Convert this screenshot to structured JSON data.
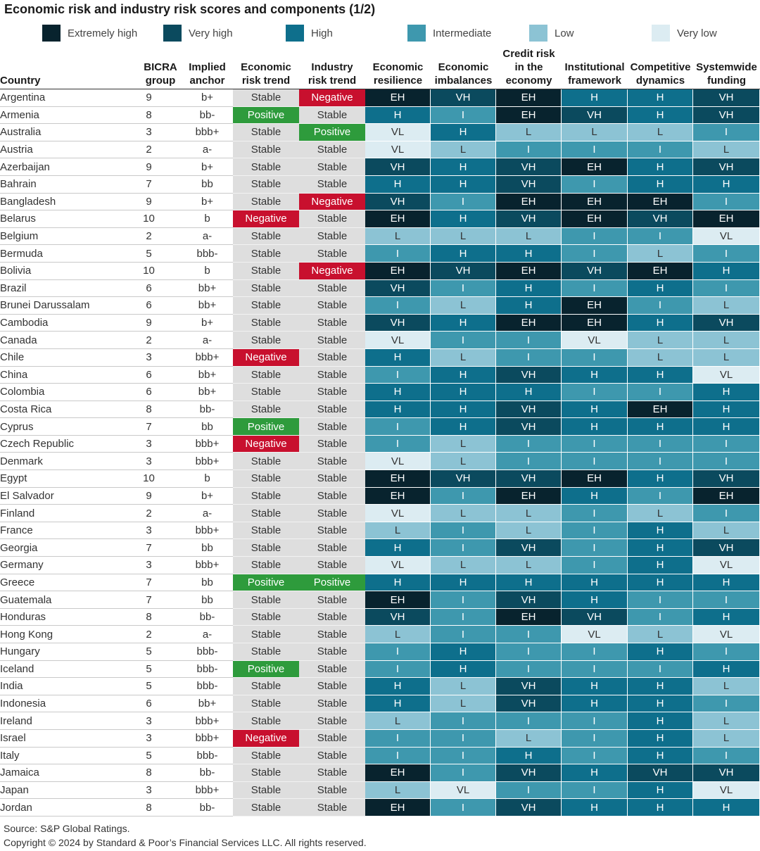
{
  "title": "Economic risk and industry risk scores and components (1/2)",
  "legend": [
    {
      "label": "Extremely high",
      "color": "#08232e"
    },
    {
      "label": "Very high",
      "color": "#0b4a5e"
    },
    {
      "label": "High",
      "color": "#0e6f8c"
    },
    {
      "label": "Intermediate",
      "color": "#3e98ae"
    },
    {
      "label": "Low",
      "color": "#8cc3d4"
    },
    {
      "label": "Very low",
      "color": "#dcecf2"
    }
  ],
  "score_colors": {
    "EH": "#08232e",
    "VH": "#0b4a5e",
    "H": "#0e6f8c",
    "I": "#3e98ae",
    "L": "#8cc3d4",
    "VL": "#dcecf2"
  },
  "trend_colors": {
    "Negative": "#c8102e",
    "Positive": "#2e9b3c",
    "Stable": "#dedede"
  },
  "headers": {
    "country": "Country",
    "bicra_group": "BICRA group",
    "implied_anchor": "Implied anchor",
    "economic_risk_trend": "Economic risk trend",
    "industry_risk_trend": "Industry risk trend",
    "economic_resilience": "Economic resilience",
    "economic_imbalances": "Economic imbalances",
    "credit_risk": "Credit risk in the economy",
    "institutional_framework": "Institutional framework",
    "competitive_dynamics": "Competitive dynamics",
    "systemwide_funding": "Systemwide funding"
  },
  "rows": [
    [
      "Argentina",
      "9",
      "b+",
      "Stable",
      "Negative",
      "EH",
      "VH",
      "EH",
      "H",
      "H",
      "VH"
    ],
    [
      "Armenia",
      "8",
      "bb-",
      "Positive",
      "Stable",
      "H",
      "I",
      "EH",
      "VH",
      "H",
      "VH"
    ],
    [
      "Australia",
      "3",
      "bbb+",
      "Stable",
      "Positive",
      "VL",
      "H",
      "L",
      "L",
      "L",
      "I"
    ],
    [
      "Austria",
      "2",
      "a-",
      "Stable",
      "Stable",
      "VL",
      "L",
      "I",
      "I",
      "I",
      "L"
    ],
    [
      "Azerbaijan",
      "9",
      "b+",
      "Stable",
      "Stable",
      "VH",
      "H",
      "VH",
      "EH",
      "H",
      "VH"
    ],
    [
      "Bahrain",
      "7",
      "bb",
      "Stable",
      "Stable",
      "H",
      "H",
      "VH",
      "I",
      "H",
      "H"
    ],
    [
      "Bangladesh",
      "9",
      "b+",
      "Stable",
      "Negative",
      "VH",
      "I",
      "EH",
      "EH",
      "EH",
      "I"
    ],
    [
      "Belarus",
      "10",
      "b",
      "Negative",
      "Stable",
      "EH",
      "H",
      "VH",
      "EH",
      "VH",
      "EH"
    ],
    [
      "Belgium",
      "2",
      "a-",
      "Stable",
      "Stable",
      "L",
      "L",
      "L",
      "I",
      "I",
      "VL"
    ],
    [
      "Bermuda",
      "5",
      "bbb-",
      "Stable",
      "Stable",
      "I",
      "H",
      "H",
      "I",
      "L",
      "I"
    ],
    [
      "Bolivia",
      "10",
      "b",
      "Stable",
      "Negative",
      "EH",
      "VH",
      "EH",
      "VH",
      "EH",
      "H"
    ],
    [
      "Brazil",
      "6",
      "bb+",
      "Stable",
      "Stable",
      "VH",
      "I",
      "H",
      "I",
      "H",
      "I"
    ],
    [
      "Brunei Darussalam",
      "6",
      "bb+",
      "Stable",
      "Stable",
      "I",
      "L",
      "H",
      "EH",
      "I",
      "L"
    ],
    [
      "Cambodia",
      "9",
      "b+",
      "Stable",
      "Stable",
      "VH",
      "H",
      "EH",
      "EH",
      "H",
      "VH"
    ],
    [
      "Canada",
      "2",
      "a-",
      "Stable",
      "Stable",
      "VL",
      "I",
      "I",
      "VL",
      "L",
      "L"
    ],
    [
      "Chile",
      "3",
      "bbb+",
      "Negative",
      "Stable",
      "H",
      "L",
      "I",
      "I",
      "L",
      "L"
    ],
    [
      "China",
      "6",
      "bb+",
      "Stable",
      "Stable",
      "I",
      "H",
      "VH",
      "H",
      "H",
      "VL"
    ],
    [
      "Colombia",
      "6",
      "bb+",
      "Stable",
      "Stable",
      "H",
      "H",
      "H",
      "I",
      "I",
      "H"
    ],
    [
      "Costa Rica",
      "8",
      "bb-",
      "Stable",
      "Stable",
      "H",
      "H",
      "VH",
      "H",
      "EH",
      "H"
    ],
    [
      "Cyprus",
      "7",
      "bb",
      "Positive",
      "Stable",
      "I",
      "H",
      "VH",
      "H",
      "H",
      "H"
    ],
    [
      "Czech Republic",
      "3",
      "bbb+",
      "Negative",
      "Stable",
      "I",
      "L",
      "I",
      "I",
      "I",
      "I"
    ],
    [
      "Denmark",
      "3",
      "bbb+",
      "Stable",
      "Stable",
      "VL",
      "L",
      "I",
      "I",
      "I",
      "I"
    ],
    [
      "Egypt",
      "10",
      "b",
      "Stable",
      "Stable",
      "EH",
      "VH",
      "VH",
      "EH",
      "H",
      "VH"
    ],
    [
      "El Salvador",
      "9",
      "b+",
      "Stable",
      "Stable",
      "EH",
      "I",
      "EH",
      "H",
      "I",
      "EH"
    ],
    [
      "Finland",
      "2",
      "a-",
      "Stable",
      "Stable",
      "VL",
      "L",
      "L",
      "I",
      "L",
      "I"
    ],
    [
      "France",
      "3",
      "bbb+",
      "Stable",
      "Stable",
      "L",
      "I",
      "L",
      "I",
      "H",
      "L"
    ],
    [
      "Georgia",
      "7",
      "bb",
      "Stable",
      "Stable",
      "H",
      "I",
      "VH",
      "I",
      "H",
      "VH"
    ],
    [
      "Germany",
      "3",
      "bbb+",
      "Stable",
      "Stable",
      "VL",
      "L",
      "L",
      "I",
      "H",
      "VL"
    ],
    [
      "Greece",
      "7",
      "bb",
      "Positive",
      "Positive",
      "H",
      "H",
      "H",
      "H",
      "H",
      "H"
    ],
    [
      "Guatemala",
      "7",
      "bb",
      "Stable",
      "Stable",
      "EH",
      "I",
      "VH",
      "H",
      "I",
      "I"
    ],
    [
      "Honduras",
      "8",
      "bb-",
      "Stable",
      "Stable",
      "VH",
      "I",
      "EH",
      "VH",
      "I",
      "H"
    ],
    [
      "Hong Kong",
      "2",
      "a-",
      "Stable",
      "Stable",
      "L",
      "I",
      "I",
      "VL",
      "L",
      "VL"
    ],
    [
      "Hungary",
      "5",
      "bbb-",
      "Stable",
      "Stable",
      "I",
      "H",
      "I",
      "I",
      "H",
      "I"
    ],
    [
      "Iceland",
      "5",
      "bbb-",
      "Positive",
      "Stable",
      "I",
      "H",
      "I",
      "I",
      "I",
      "H"
    ],
    [
      "India",
      "5",
      "bbb-",
      "Stable",
      "Stable",
      "H",
      "L",
      "VH",
      "H",
      "H",
      "L"
    ],
    [
      "Indonesia",
      "6",
      "bb+",
      "Stable",
      "Stable",
      "H",
      "L",
      "VH",
      "H",
      "H",
      "I"
    ],
    [
      "Ireland",
      "3",
      "bbb+",
      "Stable",
      "Stable",
      "L",
      "I",
      "I",
      "I",
      "H",
      "L"
    ],
    [
      "Israel",
      "3",
      "bbb+",
      "Negative",
      "Stable",
      "I",
      "I",
      "L",
      "I",
      "H",
      "L"
    ],
    [
      "Italy",
      "5",
      "bbb-",
      "Stable",
      "Stable",
      "I",
      "I",
      "H",
      "I",
      "H",
      "I"
    ],
    [
      "Jamaica",
      "8",
      "bb-",
      "Stable",
      "Stable",
      "EH",
      "I",
      "VH",
      "H",
      "VH",
      "VH"
    ],
    [
      "Japan",
      "3",
      "bbb+",
      "Stable",
      "Stable",
      "L",
      "VL",
      "I",
      "I",
      "H",
      "VL"
    ],
    [
      "Jordan",
      "8",
      "bb-",
      "Stable",
      "Stable",
      "EH",
      "I",
      "VH",
      "H",
      "H",
      "H"
    ]
  ],
  "source": "Source: S&P Global Ratings.",
  "copyright": "Copyright © 2024 by Standard & Poor’s Financial Services LLC. All rights reserved."
}
